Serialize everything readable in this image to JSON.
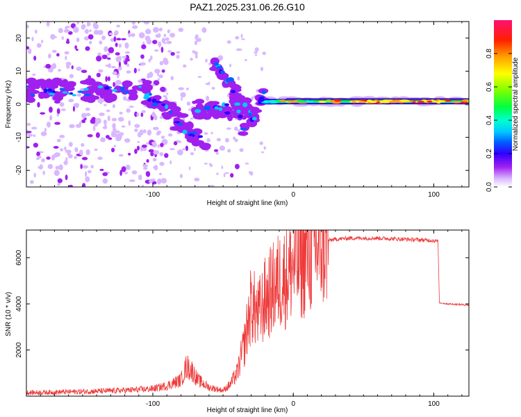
{
  "title": "PAZ1.2025.231.06.26.G10",
  "chart_data": [
    {
      "type": "heatmap",
      "name": "spectrogram",
      "xlabel": "Height of straight line (km)",
      "ylabel": "Frequency (Hz)",
      "xlim": [
        -190,
        125
      ],
      "ylim": [
        -25,
        25
      ],
      "xticks": [
        -100,
        0,
        100
      ],
      "xtick_labels": [
        "-100",
        "0",
        "100"
      ],
      "yticks": [
        -20,
        -10,
        0,
        10,
        20
      ],
      "ytick_labels": [
        "-20",
        "-10",
        "0",
        "10",
        "20"
      ],
      "colorbar": {
        "label": "Normalized spectral amplitude",
        "range": [
          0,
          1
        ],
        "ticks": [
          0.0,
          0.2,
          0.4,
          0.6,
          0.8
        ],
        "tick_labels": [
          "0.0",
          "0.2",
          "0.4",
          "0.6",
          "0.8"
        ],
        "colormap": [
          "#ffffff",
          "#d9b8ff",
          "#a020f0",
          "#5a00d0",
          "#0000ff",
          "#00b0ff",
          "#00ffe0",
          "#00ff60",
          "#40ff00",
          "#c0ff00",
          "#ffff00",
          "#ffb000",
          "#ff5000",
          "#ff0000",
          "#ff1070"
        ]
      },
      "features": [
        {
          "label": "main signal line",
          "height_km": [
            -25,
            125
          ],
          "freq_hz": [
            0.5,
            1.2
          ],
          "amplitude": [
            0.4,
            0.9
          ]
        },
        {
          "label": "descending tracks",
          "height_km": [
            -190,
            -25
          ],
          "freq_hz": [
            -12,
            6
          ],
          "amplitude": [
            0.1,
            0.35
          ]
        },
        {
          "label": "diagonal branch",
          "height_km": [
            -55,
            -28
          ],
          "freq_hz": [
            -4,
            13
          ],
          "amplitude": [
            0.1,
            0.25
          ]
        },
        {
          "label": "scattered noise",
          "height_km": [
            -190,
            -100
          ],
          "freq_hz": [
            -25,
            25
          ],
          "amplitude": [
            0.02,
            0.15
          ]
        }
      ]
    },
    {
      "type": "line",
      "name": "snr",
      "xlabel": "Height of straight line (km)",
      "ylabel": "SNR (10 * v/v)",
      "xlim": [
        -190,
        125
      ],
      "ylim": [
        0,
        7200
      ],
      "xticks": [
        -100,
        0,
        100
      ],
      "xtick_labels": [
        "-100",
        "0",
        "100"
      ],
      "yticks": [
        2000,
        4000,
        6000
      ],
      "ytick_labels": [
        "2000",
        "4000",
        "6000"
      ],
      "color": "#ee3a3a",
      "series": [
        {
          "name": "SNR",
          "x": [
            -190,
            -170,
            -150,
            -130,
            -110,
            -100,
            -90,
            -80,
            -76,
            -72,
            -68,
            -60,
            -50,
            -45,
            -40,
            -35,
            -30,
            -25,
            -20,
            -15,
            -10,
            -5,
            0,
            5,
            10,
            15,
            20,
            25,
            30,
            40,
            60,
            80,
            100,
            103,
            104,
            110,
            125
          ],
          "y": [
            150,
            170,
            200,
            230,
            280,
            320,
            450,
            700,
            1300,
            1100,
            700,
            380,
            250,
            500,
            1000,
            2200,
            4000,
            3500,
            4200,
            4600,
            5000,
            5200,
            5700,
            5800,
            6100,
            6400,
            6600,
            6750,
            6800,
            6850,
            6850,
            6800,
            6750,
            6700,
            4050,
            4000,
            3950
          ]
        }
      ]
    }
  ]
}
